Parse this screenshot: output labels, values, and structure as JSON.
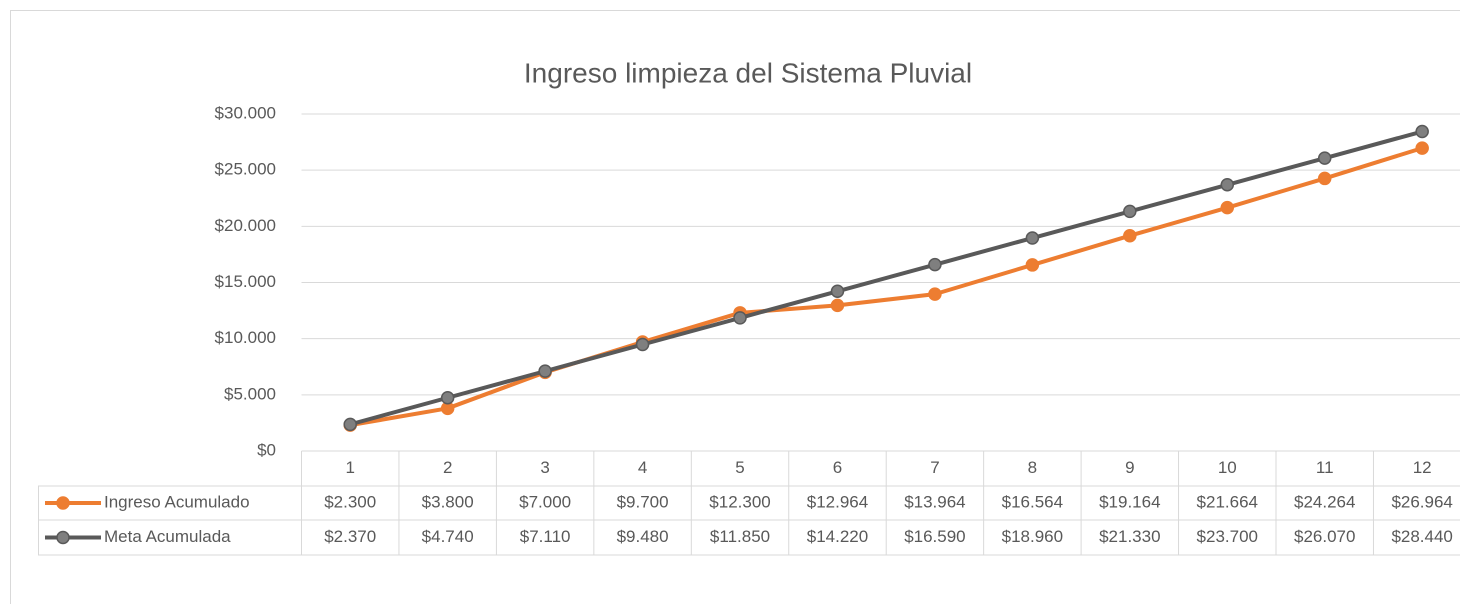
{
  "chart_data": {
    "type": "line",
    "title": "Ingreso limpieza del Sistema Pluvial",
    "categories": [
      "1",
      "2",
      "3",
      "4",
      "5",
      "6",
      "7",
      "8",
      "9",
      "10",
      "11",
      "12"
    ],
    "series": [
      {
        "name": "Ingreso Acumulado",
        "color": "#ed7d31",
        "values": [
          2300,
          3800,
          7000,
          9700,
          12300,
          12964,
          13964,
          16564,
          19164,
          21664,
          24264,
          26964
        ],
        "value_labels": [
          "$2.300",
          "$3.800",
          "$7.000",
          "$9.700",
          "$12.300",
          "$12.964",
          "$13.964",
          "$16.564",
          "$19.164",
          "$21.664",
          "$24.264",
          "$26.964"
        ]
      },
      {
        "name": "Meta Acumulada",
        "color": "#595959",
        "values": [
          2370,
          4740,
          7110,
          9480,
          11850,
          14220,
          16590,
          18960,
          21330,
          23700,
          26070,
          28440
        ],
        "value_labels": [
          "$2.370",
          "$4.740",
          "$7.110",
          "$9.480",
          "$11.850",
          "$14.220",
          "$16.590",
          "$18.960",
          "$21.330",
          "$23.700",
          "$26.070",
          "$28.440"
        ]
      }
    ],
    "ylim": [
      0,
      30000
    ],
    "yticks": [
      {
        "value": 0,
        "label": "$0"
      },
      {
        "value": 5000,
        "label": "$5.000"
      },
      {
        "value": 10000,
        "label": "$10.000"
      },
      {
        "value": 15000,
        "label": "$15.000"
      },
      {
        "value": 20000,
        "label": "$20.000"
      },
      {
        "value": 25000,
        "label": "$25.000"
      },
      {
        "value": 30000,
        "label": "$30.000"
      }
    ],
    "grid": true
  }
}
